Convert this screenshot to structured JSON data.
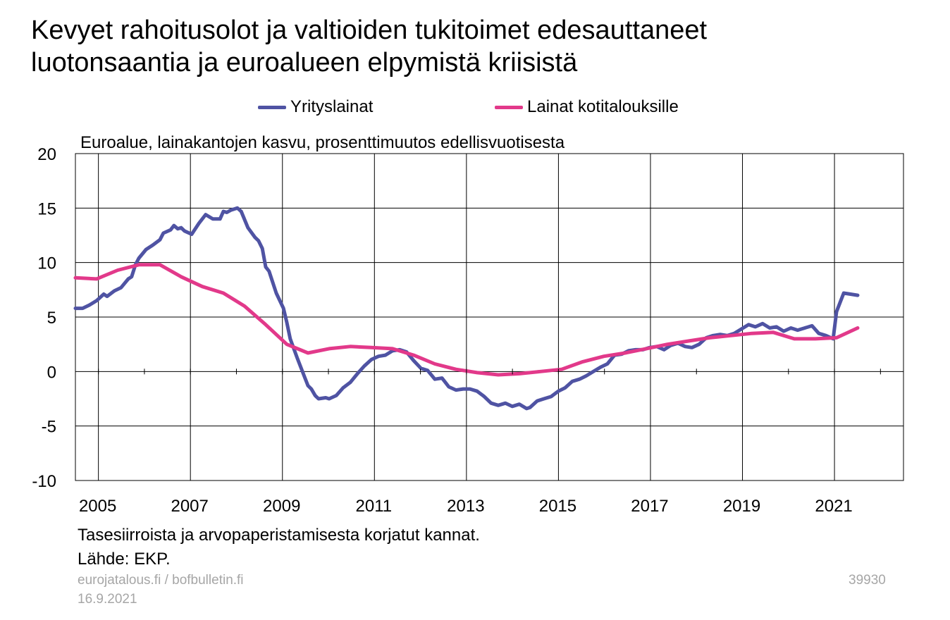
{
  "title_lines": [
    "Kevyet rahoitusolot ja valtioiden tukitoimet edesauttaneet",
    "luotonsaantia ja euroalueen elpymistä kriisistä"
  ],
  "notes": [
    "Tasesiirroista ja arvopaperistamisesta korjatut kannat.",
    "Lähde: EKP."
  ],
  "footer": {
    "sites": "eurojatalous.fi  / bofbulletin.fi",
    "date": "16.9.2021",
    "code": "39930"
  },
  "colors": {
    "corporate": "#4f53a3",
    "household": "#e2398a",
    "grid": "#000000"
  },
  "chart_data": {
    "type": "line",
    "title": "Euroalue, lainakantojen kasvu, prosenttimuutos edellisvuotisesta",
    "ylim": [
      -10,
      20
    ],
    "yticks": [
      -10,
      -5,
      0,
      5,
      10,
      15,
      20
    ],
    "xlim": [
      2004.5,
      2022.5
    ],
    "xticks": [
      2005,
      2007,
      2009,
      2011,
      2013,
      2015,
      2017,
      2019,
      2021
    ],
    "grid": true,
    "legend": "top",
    "series": [
      {
        "name": "Yrityslainat",
        "color": "#4f53a3",
        "points": [
          [
            2004.5,
            5.8
          ],
          [
            2004.67,
            5.8
          ],
          [
            2004.83,
            6.1
          ],
          [
            2005.0,
            6.5
          ],
          [
            2005.17,
            7.1
          ],
          [
            2005.25,
            6.9
          ],
          [
            2005.42,
            7.4
          ],
          [
            2005.58,
            7.7
          ],
          [
            2005.75,
            8.5
          ],
          [
            2005.83,
            8.7
          ],
          [
            2005.92,
            9.8
          ],
          [
            2006.0,
            10.4
          ],
          [
            2006.17,
            11.2
          ],
          [
            2006.33,
            11.6
          ],
          [
            2006.5,
            12.1
          ],
          [
            2006.58,
            12.7
          ],
          [
            2006.75,
            13.0
          ],
          [
            2006.83,
            13.4
          ],
          [
            2006.92,
            13.1
          ],
          [
            2007.0,
            13.2
          ],
          [
            2007.08,
            12.9
          ],
          [
            2007.25,
            12.6
          ],
          [
            2007.42,
            13.6
          ],
          [
            2007.58,
            14.4
          ],
          [
            2007.75,
            14.0
          ],
          [
            2007.92,
            14.0
          ],
          [
            2008.0,
            14.7
          ],
          [
            2008.08,
            14.6
          ],
          [
            2008.17,
            14.8
          ],
          [
            2008.33,
            15.0
          ],
          [
            2008.42,
            14.7
          ],
          [
            2008.58,
            13.2
          ],
          [
            2008.75,
            12.3
          ],
          [
            2008.83,
            12.0
          ],
          [
            2008.92,
            11.3
          ],
          [
            2009.0,
            9.6
          ],
          [
            2009.08,
            9.2
          ],
          [
            2009.25,
            7.2
          ],
          [
            2009.42,
            5.8
          ],
          [
            2009.5,
            4.5
          ],
          [
            2009.58,
            3.0
          ],
          [
            2009.75,
            1.2
          ],
          [
            2009.92,
            -0.5
          ],
          [
            2010.0,
            -1.3
          ],
          [
            2010.08,
            -1.6
          ],
          [
            2010.17,
            -2.2
          ],
          [
            2010.25,
            -2.5
          ],
          [
            2010.42,
            -2.4
          ],
          [
            2010.5,
            -2.5
          ],
          [
            2010.67,
            -2.2
          ],
          [
            2010.83,
            -1.5
          ],
          [
            2011.0,
            -1.0
          ],
          [
            2011.17,
            -0.2
          ],
          [
            2011.33,
            0.5
          ],
          [
            2011.5,
            1.1
          ],
          [
            2011.67,
            1.4
          ],
          [
            2011.83,
            1.5
          ],
          [
            2012.0,
            1.9
          ],
          [
            2012.17,
            2.0
          ],
          [
            2012.33,
            1.8
          ],
          [
            2012.5,
            1.0
          ],
          [
            2012.67,
            0.3
          ],
          [
            2012.83,
            0.1
          ],
          [
            2013.0,
            -0.7
          ],
          [
            2013.17,
            -0.6
          ],
          [
            2013.33,
            -1.4
          ],
          [
            2013.5,
            -1.7
          ],
          [
            2013.67,
            -1.6
          ],
          [
            2013.83,
            -1.6
          ],
          [
            2014.0,
            -1.8
          ],
          [
            2014.17,
            -2.3
          ],
          [
            2014.33,
            -2.9
          ],
          [
            2014.5,
            -3.1
          ],
          [
            2014.67,
            -2.9
          ],
          [
            2014.83,
            -3.2
          ],
          [
            2015.0,
            -3.0
          ],
          [
            2015.17,
            -3.4
          ],
          [
            2015.25,
            -3.3
          ],
          [
            2015.42,
            -2.7
          ],
          [
            2015.58,
            -2.5
          ],
          [
            2015.75,
            -2.3
          ],
          [
            2015.92,
            -1.8
          ],
          [
            2016.08,
            -1.5
          ],
          [
            2016.25,
            -0.9
          ],
          [
            2016.42,
            -0.7
          ],
          [
            2016.58,
            -0.4
          ],
          [
            2016.75,
            0.0
          ],
          [
            2016.92,
            0.4
          ],
          [
            2017.08,
            0.7
          ],
          [
            2017.25,
            1.5
          ],
          [
            2017.42,
            1.6
          ],
          [
            2017.58,
            1.9
          ],
          [
            2017.75,
            2.0
          ],
          [
            2017.92,
            2.0
          ],
          [
            2018.08,
            2.2
          ],
          [
            2018.25,
            2.3
          ],
          [
            2018.42,
            2.0
          ],
          [
            2018.58,
            2.4
          ],
          [
            2018.75,
            2.6
          ],
          [
            2018.92,
            2.3
          ],
          [
            2019.08,
            2.2
          ],
          [
            2019.25,
            2.5
          ],
          [
            2019.42,
            3.1
          ],
          [
            2019.58,
            3.3
          ],
          [
            2019.75,
            3.4
          ],
          [
            2019.92,
            3.3
          ],
          [
            2020.08,
            3.5
          ],
          [
            2020.25,
            3.9
          ],
          [
            2020.42,
            4.3
          ],
          [
            2020.58,
            4.1
          ],
          [
            2020.75,
            4.4
          ],
          [
            2020.92,
            4.0
          ],
          [
            2021.08,
            4.1
          ],
          [
            2021.25,
            3.7
          ],
          [
            2021.42,
            4.0
          ],
          [
            2021.58,
            3.8
          ],
          [
            2021.75,
            4.0
          ],
          [
            2021.92,
            4.2
          ],
          [
            2022.08,
            3.5
          ],
          [
            2022.25,
            3.3
          ],
          [
            2022.42,
            3.0
          ],
          [
            2022.5,
            5.5
          ],
          [
            2022.67,
            7.2
          ],
          [
            2022.83,
            7.1
          ],
          [
            2023.0,
            7.0
          ]
        ]
      },
      {
        "name": "Lainat kotitalouksille",
        "color": "#e2398a",
        "points": [
          [
            2004.5,
            8.6
          ],
          [
            2005.0,
            8.5
          ],
          [
            2005.5,
            9.3
          ],
          [
            2006.0,
            9.8
          ],
          [
            2006.5,
            9.8
          ],
          [
            2007.0,
            8.7
          ],
          [
            2007.5,
            7.8
          ],
          [
            2008.0,
            7.2
          ],
          [
            2008.5,
            6.0
          ],
          [
            2009.0,
            4.3
          ],
          [
            2009.5,
            2.5
          ],
          [
            2010.0,
            1.7
          ],
          [
            2010.5,
            2.1
          ],
          [
            2011.0,
            2.3
          ],
          [
            2011.5,
            2.2
          ],
          [
            2012.0,
            2.1
          ],
          [
            2012.5,
            1.5
          ],
          [
            2013.0,
            0.7
          ],
          [
            2013.5,
            0.2
          ],
          [
            2014.0,
            -0.1
          ],
          [
            2014.5,
            -0.3
          ],
          [
            2015.0,
            -0.2
          ],
          [
            2015.5,
            0.0
          ],
          [
            2016.0,
            0.2
          ],
          [
            2016.5,
            0.9
          ],
          [
            2017.0,
            1.4
          ],
          [
            2017.5,
            1.7
          ],
          [
            2018.0,
            2.1
          ],
          [
            2018.5,
            2.5
          ],
          [
            2019.0,
            2.8
          ],
          [
            2019.5,
            3.1
          ],
          [
            2020.0,
            3.3
          ],
          [
            2020.5,
            3.5
          ],
          [
            2021.0,
            3.6
          ],
          [
            2021.5,
            3.0
          ],
          [
            2022.0,
            3.0
          ],
          [
            2022.5,
            3.1
          ],
          [
            2023.0,
            4.0
          ]
        ]
      }
    ]
  }
}
